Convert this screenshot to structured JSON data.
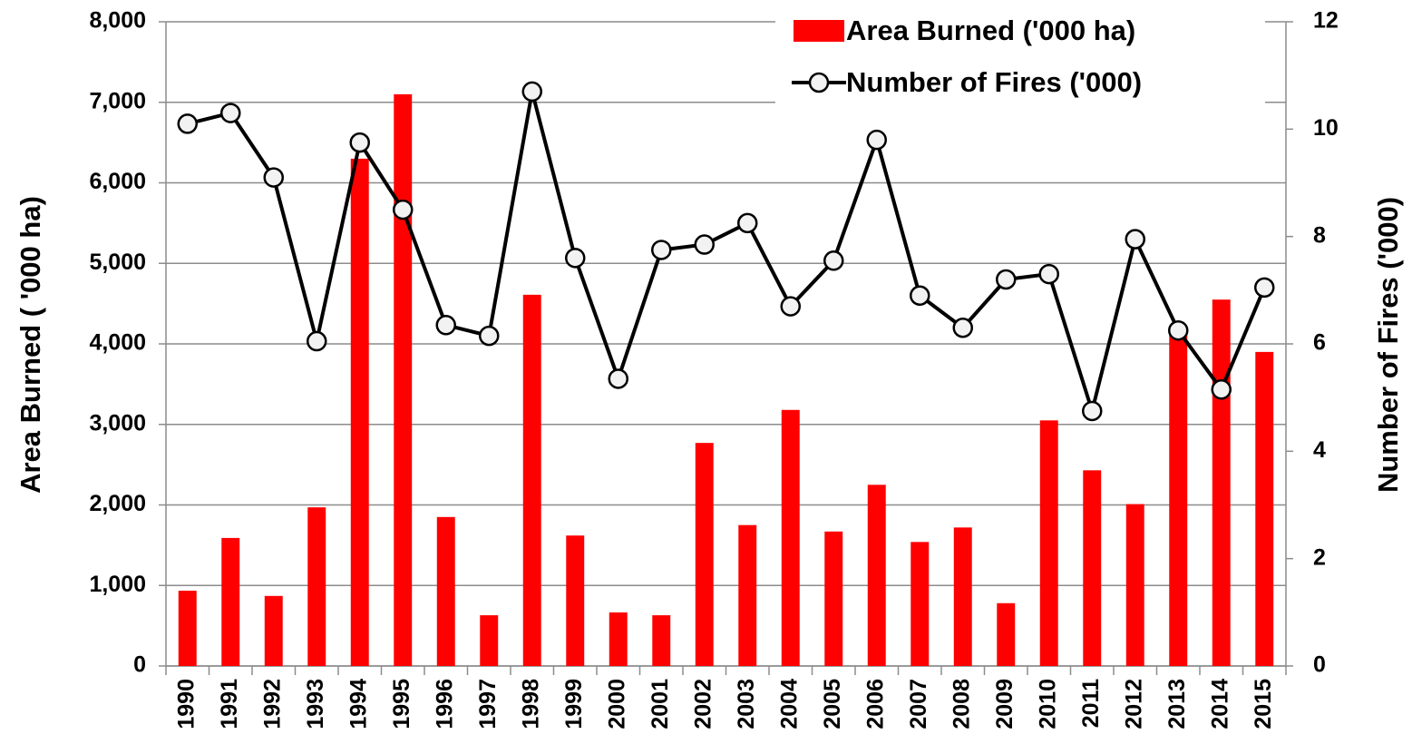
{
  "chart_data": {
    "type": "bar_line",
    "categories": [
      "1990",
      "1991",
      "1992",
      "1993",
      "1994",
      "1995",
      "1996",
      "1997",
      "1998",
      "1999",
      "2000",
      "2001",
      "2002",
      "2003",
      "2004",
      "2005",
      "2006",
      "2007",
      "2008",
      "2009",
      "2010",
      "2011",
      "2012",
      "2013",
      "2014",
      "2015"
    ],
    "series": [
      {
        "name": "Area Burned ('000 ha)",
        "type": "bar",
        "color": "#ff0000",
        "axis": "y",
        "values": [
          935,
          1590,
          870,
          1970,
          6300,
          7100,
          1850,
          630,
          4610,
          1620,
          665,
          630,
          2770,
          1750,
          3180,
          1670,
          2250,
          1540,
          1720,
          780,
          3050,
          2430,
          2010,
          4150,
          4550,
          3900
        ]
      },
      {
        "name": "Number of Fires ('000)",
        "type": "line",
        "color": "#000000",
        "axis": "y2",
        "values": [
          10.1,
          10.3,
          9.1,
          6.05,
          9.75,
          8.5,
          6.35,
          6.15,
          10.7,
          7.6,
          5.35,
          7.75,
          7.85,
          8.25,
          6.7,
          7.55,
          9.8,
          6.9,
          6.3,
          7.2,
          7.3,
          4.75,
          7.95,
          6.25,
          5.15,
          7.05
        ]
      }
    ],
    "ylabel": "Area Burned ( '000 ha)",
    "y2label": "Number of Fires ('000)",
    "ylim": [
      0,
      8000
    ],
    "yticks": [
      0,
      {
        "value": 1000,
        "label": "1,000"
      },
      {
        "value": 2000,
        "label": "2,000"
      },
      {
        "value": 3000,
        "label": "3,000"
      },
      {
        "value": 4000,
        "label": "4,000"
      },
      {
        "value": 5000,
        "label": "5,000"
      },
      {
        "value": 6000,
        "label": "6,000"
      },
      {
        "value": 7000,
        "label": "7,000"
      },
      {
        "value": 8000,
        "label": "8,000"
      }
    ],
    "y2lim": [
      0,
      12
    ],
    "y2ticks": [
      0,
      2,
      4,
      6,
      8,
      10,
      12
    ],
    "grid": true,
    "legend": "upper right"
  }
}
